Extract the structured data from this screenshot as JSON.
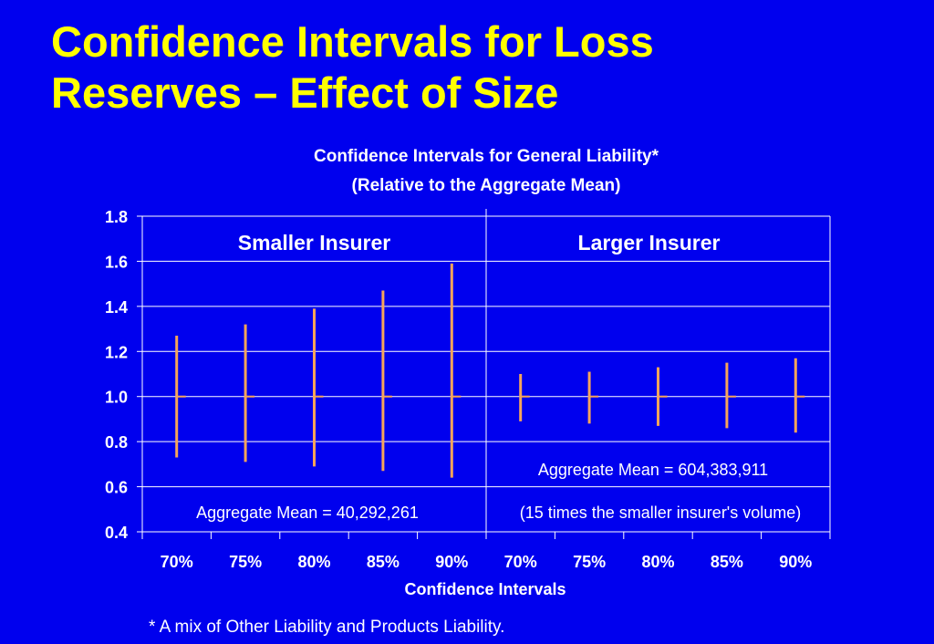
{
  "slide": {
    "title_line1": "Confidence Intervals for Loss",
    "title_line2": "Reserves – Effect of Size",
    "footnote": "* A mix of Other Liability and Products Liability."
  },
  "colors": {
    "background": "#0000ee",
    "title": "#ffff00",
    "text": "#ffffff",
    "interval_bar": "#f5a45a",
    "gridline": "#ffffff"
  },
  "chart_data": {
    "type": "interval",
    "title_line1": "Confidence Intervals for General Liability*",
    "title_line2": "(Relative to the Aggregate Mean)",
    "xlabel": "Confidence Intervals",
    "ylabel": "",
    "ylim": [
      0.4,
      1.8
    ],
    "yticks": [
      "0.4",
      "0.6",
      "0.8",
      "1.0",
      "1.2",
      "1.4",
      "1.6",
      "1.8"
    ],
    "grid": true,
    "categories": [
      "70%",
      "75%",
      "80%",
      "85%",
      "90%",
      "70%",
      "75%",
      "80%",
      "85%",
      "90%"
    ],
    "series": [
      {
        "name": "",
        "mean": [
          1.0,
          1.0,
          1.0,
          1.0,
          1.0,
          1.0,
          1.0,
          1.0,
          1.0,
          1.0
        ],
        "lower": [
          0.73,
          0.71,
          0.69,
          0.67,
          0.64,
          0.89,
          0.88,
          0.87,
          0.86,
          0.84
        ],
        "upper": [
          1.27,
          1.32,
          1.39,
          1.47,
          1.59,
          1.1,
          1.11,
          1.13,
          1.15,
          1.17
        ]
      }
    ],
    "panels": [
      {
        "label": "Smaller Insurer",
        "annotation": "Aggregate Mean = 40,292,261",
        "annotation2": ""
      },
      {
        "label": "Larger Insurer",
        "annotation": "Aggregate Mean = 604,383,911",
        "annotation2": "(15 times the smaller insurer's volume)"
      }
    ]
  }
}
